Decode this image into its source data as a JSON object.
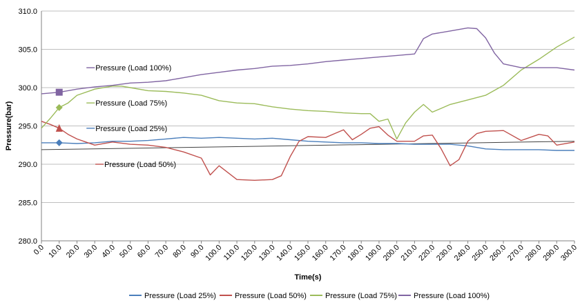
{
  "chart_data": {
    "type": "line",
    "xlabel": "Time(s)",
    "ylabel": "Pressure(bar)",
    "xlim": [
      0,
      300
    ],
    "ylim": [
      280,
      310
    ],
    "x_ticks": [
      "0.0",
      "10.0",
      "20.0",
      "30.0",
      "40.0",
      "50.0",
      "60.0",
      "70.0",
      "80.0",
      "90.0",
      "100.0",
      "110.0",
      "120.0",
      "130.0",
      "140.0",
      "150.0",
      "160.0",
      "170.0",
      "180.0",
      "190.0",
      "200.0",
      "210.0",
      "220.0",
      "230.0",
      "240.0",
      "250.0",
      "260.0",
      "270.0",
      "280.0",
      "290.0",
      "300.0"
    ],
    "y_ticks": [
      "280.0",
      "285.0",
      "290.0",
      "295.0",
      "300.0",
      "305.0",
      "310.0"
    ],
    "grid": "horizontal",
    "legend": "bottom",
    "series": [
      {
        "name": "Pressure (Load 25%)",
        "color": "#4a7ebb",
        "marker": "diamond",
        "marker_x": 10,
        "points": [
          [
            0,
            292.8
          ],
          [
            10,
            292.8
          ],
          [
            20,
            292.7
          ],
          [
            30,
            292.8
          ],
          [
            40,
            293.0
          ],
          [
            50,
            293.0
          ],
          [
            60,
            293.1
          ],
          [
            70,
            293.3
          ],
          [
            80,
            293.5
          ],
          [
            90,
            293.4
          ],
          [
            100,
            293.5
          ],
          [
            110,
            293.4
          ],
          [
            120,
            293.3
          ],
          [
            130,
            293.4
          ],
          [
            140,
            293.2
          ],
          [
            150,
            293.0
          ],
          [
            160,
            292.9
          ],
          [
            170,
            292.8
          ],
          [
            180,
            292.8
          ],
          [
            190,
            292.7
          ],
          [
            200,
            292.7
          ],
          [
            210,
            292.6
          ],
          [
            220,
            292.6
          ],
          [
            230,
            292.6
          ],
          [
            240,
            292.4
          ],
          [
            250,
            292.0
          ],
          [
            260,
            291.9
          ],
          [
            270,
            291.9
          ],
          [
            280,
            291.9
          ],
          [
            290,
            291.8
          ],
          [
            300,
            291.8
          ]
        ]
      },
      {
        "name": "Pressure (Load 50%)",
        "color": "#c0504d",
        "marker": "triangle",
        "marker_x": 10,
        "points": [
          [
            0,
            295.6
          ],
          [
            5,
            295.2
          ],
          [
            10,
            294.7
          ],
          [
            15,
            293.9
          ],
          [
            20,
            293.3
          ],
          [
            25,
            292.9
          ],
          [
            30,
            292.5
          ],
          [
            40,
            292.9
          ],
          [
            50,
            292.6
          ],
          [
            60,
            292.5
          ],
          [
            70,
            292.2
          ],
          [
            80,
            291.6
          ],
          [
            90,
            290.8
          ],
          [
            95,
            288.6
          ],
          [
            100,
            289.8
          ],
          [
            105,
            288.9
          ],
          [
            110,
            288.0
          ],
          [
            120,
            287.9
          ],
          [
            130,
            288.0
          ],
          [
            135,
            288.5
          ],
          [
            140,
            291.0
          ],
          [
            145,
            293.0
          ],
          [
            150,
            293.6
          ],
          [
            160,
            293.5
          ],
          [
            165,
            294.0
          ],
          [
            170,
            294.5
          ],
          [
            175,
            293.2
          ],
          [
            180,
            293.9
          ],
          [
            185,
            294.7
          ],
          [
            190,
            294.9
          ],
          [
            195,
            293.8
          ],
          [
            200,
            293.0
          ],
          [
            210,
            293.0
          ],
          [
            215,
            293.7
          ],
          [
            220,
            293.8
          ],
          [
            225,
            292.0
          ],
          [
            230,
            289.8
          ],
          [
            235,
            290.6
          ],
          [
            240,
            293.0
          ],
          [
            245,
            294.0
          ],
          [
            250,
            294.3
          ],
          [
            260,
            294.4
          ],
          [
            270,
            293.1
          ],
          [
            280,
            293.9
          ],
          [
            285,
            293.7
          ],
          [
            290,
            292.5
          ],
          [
            300,
            292.9
          ]
        ]
      },
      {
        "name": "Pressure (Load 75%)",
        "color": "#9bbb59",
        "marker": "diamond",
        "marker_x": 10,
        "points": [
          [
            0,
            294.7
          ],
          [
            5,
            296.0
          ],
          [
            10,
            297.4
          ],
          [
            15,
            298.0
          ],
          [
            20,
            299.0
          ],
          [
            30,
            299.8
          ],
          [
            40,
            300.2
          ],
          [
            45,
            300.2
          ],
          [
            50,
            300.0
          ],
          [
            60,
            299.6
          ],
          [
            70,
            299.5
          ],
          [
            80,
            299.3
          ],
          [
            90,
            299.0
          ],
          [
            100,
            298.3
          ],
          [
            110,
            298.0
          ],
          [
            120,
            297.9
          ],
          [
            130,
            297.5
          ],
          [
            140,
            297.2
          ],
          [
            150,
            297.0
          ],
          [
            160,
            296.9
          ],
          [
            170,
            296.7
          ],
          [
            180,
            296.6
          ],
          [
            185,
            296.6
          ],
          [
            190,
            295.6
          ],
          [
            195,
            295.9
          ],
          [
            200,
            293.3
          ],
          [
            205,
            295.4
          ],
          [
            210,
            296.8
          ],
          [
            215,
            297.8
          ],
          [
            220,
            296.8
          ],
          [
            225,
            297.3
          ],
          [
            230,
            297.8
          ],
          [
            240,
            298.4
          ],
          [
            250,
            299.0
          ],
          [
            260,
            300.3
          ],
          [
            270,
            302.3
          ],
          [
            280,
            303.7
          ],
          [
            290,
            305.3
          ],
          [
            300,
            306.6
          ]
        ]
      },
      {
        "name": "Pressure (Load 100%)",
        "color": "#8064a2",
        "marker": "square",
        "marker_x": 10,
        "points": [
          [
            0,
            299.2
          ],
          [
            10,
            299.4
          ],
          [
            20,
            299.8
          ],
          [
            30,
            300.1
          ],
          [
            40,
            300.3
          ],
          [
            50,
            300.6
          ],
          [
            60,
            300.7
          ],
          [
            70,
            300.9
          ],
          [
            80,
            301.3
          ],
          [
            90,
            301.7
          ],
          [
            100,
            302.0
          ],
          [
            110,
            302.3
          ],
          [
            120,
            302.5
          ],
          [
            130,
            302.8
          ],
          [
            140,
            302.9
          ],
          [
            150,
            303.1
          ],
          [
            160,
            303.4
          ],
          [
            170,
            303.6
          ],
          [
            180,
            303.8
          ],
          [
            190,
            304.0
          ],
          [
            200,
            304.2
          ],
          [
            210,
            304.4
          ],
          [
            215,
            306.4
          ],
          [
            220,
            307.0
          ],
          [
            230,
            307.4
          ],
          [
            240,
            307.8
          ],
          [
            245,
            307.7
          ],
          [
            250,
            306.5
          ],
          [
            255,
            304.5
          ],
          [
            260,
            303.1
          ],
          [
            270,
            302.6
          ],
          [
            280,
            302.6
          ],
          [
            290,
            302.6
          ],
          [
            300,
            302.3
          ]
        ]
      }
    ],
    "inline_labels": [
      {
        "text": "Pressure (Load 100%)",
        "series": 3,
        "x": 30,
        "y": 302.6
      },
      {
        "text": "Pressure (Load 75%)",
        "series": 2,
        "x": 30,
        "y": 298.0
      },
      {
        "text": "Pressure (Load 25%)",
        "series": 0,
        "x": 30,
        "y": 294.7
      },
      {
        "text": "Pressure (Load 50%)",
        "series": 1,
        "x": 35,
        "y": 290.0
      }
    ],
    "trendline": {
      "color": "#404040",
      "points": [
        [
          0,
          291.9
        ],
        [
          300,
          293.0
        ]
      ]
    }
  }
}
